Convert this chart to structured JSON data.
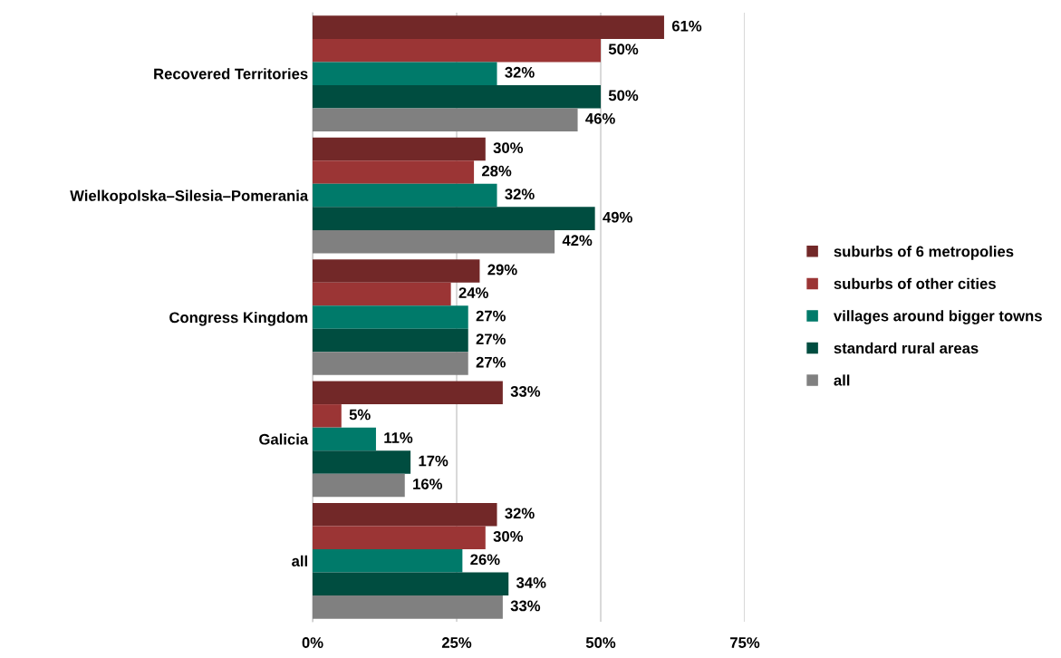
{
  "chart_data": {
    "type": "bar",
    "orientation": "horizontal",
    "categories": [
      "Recovered Territories",
      "Wielkopolska–Silesia–Pomerania",
      "Congress Kingdom",
      "Galicia",
      "all"
    ],
    "series": [
      {
        "name": "suburbs of 6 metropolies",
        "color": "#722828",
        "values": [
          61,
          30,
          29,
          33,
          32
        ],
        "value_labels": [
          "61%",
          "30%",
          "29%",
          "33%",
          "32%"
        ]
      },
      {
        "name": "suburbs of other cities",
        "color": "#9b3535",
        "values": [
          50,
          28,
          24,
          5,
          30
        ],
        "value_labels": [
          "50%",
          "28%",
          "24%",
          "5%",
          "30%"
        ]
      },
      {
        "name": "villages around bigger towns",
        "color": "#007a6a",
        "values": [
          32,
          32,
          27,
          11,
          26
        ],
        "value_labels": [
          "32%",
          "32%",
          "27%",
          "11%",
          "26%"
        ]
      },
      {
        "name": "standard rural areas",
        "color": "#004d40",
        "values": [
          50,
          49,
          27,
          17,
          34
        ],
        "value_labels": [
          "50%",
          "49%",
          "27%",
          "17%",
          "34%"
        ]
      },
      {
        "name": "all",
        "color": "#808080",
        "values": [
          46,
          42,
          27,
          16,
          33
        ],
        "value_labels": [
          "46%",
          "42%",
          "27%",
          "16%",
          "33%"
        ]
      }
    ],
    "xlim": [
      0,
      75
    ],
    "xticks": [
      {
        "value": 0,
        "label": "0%"
      },
      {
        "value": 25,
        "label": "25%"
      },
      {
        "value": 50,
        "label": "50%"
      },
      {
        "value": 75,
        "label": "75%"
      }
    ],
    "grid": "x",
    "legend": "right"
  }
}
